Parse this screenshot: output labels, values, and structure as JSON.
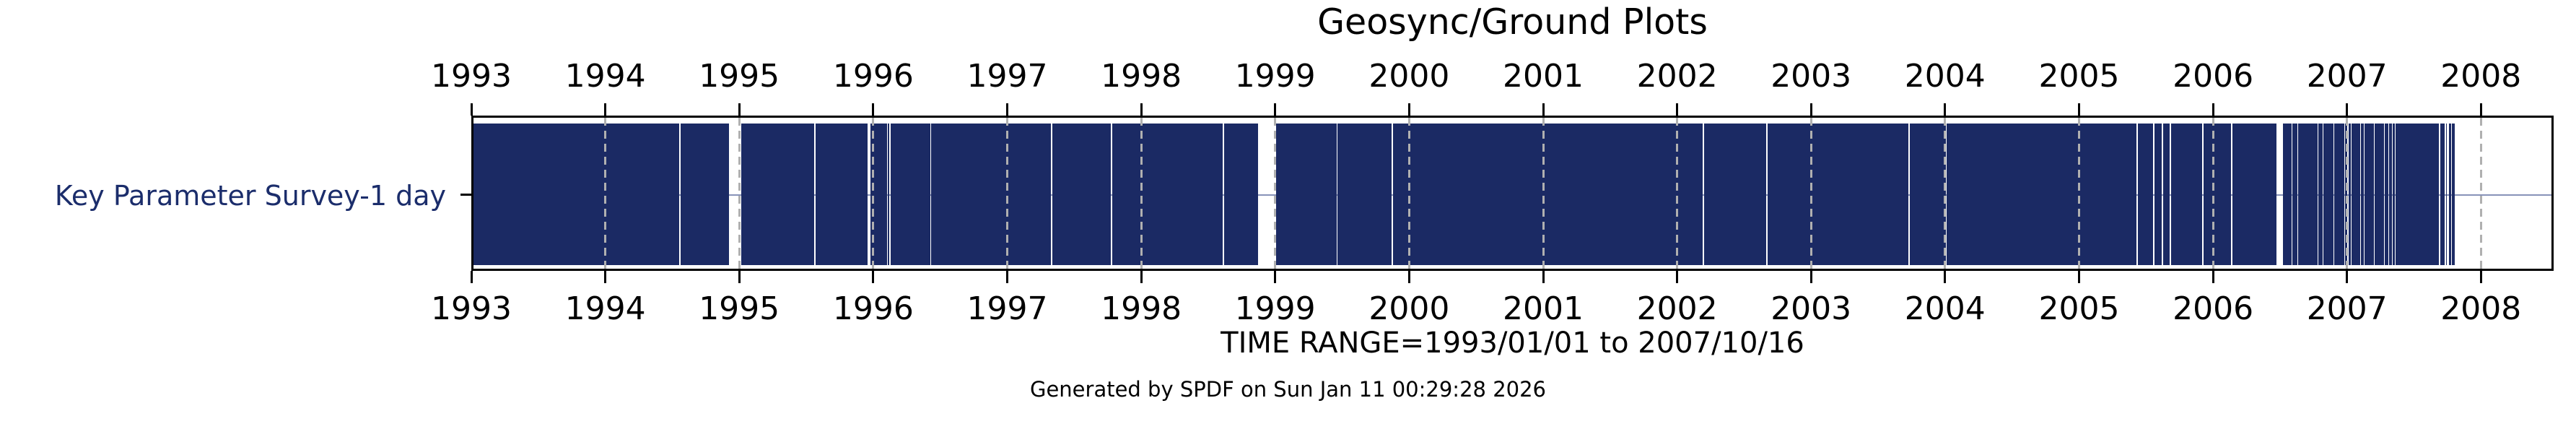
{
  "title": "Geosync/Ground Plots",
  "captions": {
    "time_range": "TIME RANGE=1993/01/01 to 2007/10/16",
    "generated": "Generated by SPDF on Sun Jan 11 00:29:28 2026"
  },
  "colors": {
    "bar": "#1b2a64",
    "row_label_text": "#1b2d6b",
    "row_center_line": "#8893b8",
    "gridline": "#b0b0b0",
    "axis": "#000000",
    "background": "#ffffff"
  },
  "chart_data": {
    "type": "bar",
    "subtype": "time-availability-timeline",
    "title": "Geosync/Ground Plots",
    "grid": "vertical-dashed-at-each-year",
    "legend": "none",
    "x_domain_years": [
      1993.0,
      2008.51
    ],
    "x_ticks": [
      1993,
      1994,
      1995,
      1996,
      1997,
      1998,
      1999,
      2000,
      2001,
      2002,
      2003,
      2004,
      2005,
      2006,
      2007,
      2008
    ],
    "x_tick_label_sides": [
      "top",
      "bottom"
    ],
    "time_range": {
      "start": "1993/01/01",
      "end": "2007/10/16"
    },
    "rows": [
      {
        "label": "Key Parameter Survey-1 day",
        "segments_years": [
          [
            1993.0,
            1994.537
          ],
          [
            1994.548,
            1994.908
          ],
          [
            1995.0,
            1995.543
          ],
          [
            1995.551,
            1995.941
          ],
          [
            1995.962,
            1996.086
          ],
          [
            1996.094,
            1996.105
          ],
          [
            1996.113,
            1996.409
          ],
          [
            1996.417,
            1997.312
          ],
          [
            1997.32,
            1997.758
          ],
          [
            1997.766,
            1998.591
          ],
          [
            1998.602,
            1998.855
          ],
          [
            1998.989,
            1999.441
          ],
          [
            1999.449,
            1999.855
          ],
          [
            1999.863,
            2002.177
          ],
          [
            2002.185,
            2002.65
          ],
          [
            2002.658,
            2003.71
          ],
          [
            2003.718,
            2003.989
          ],
          [
            2003.997,
            2005.414
          ],
          [
            2005.422,
            2005.538
          ],
          [
            2005.546,
            2005.602
          ],
          [
            2005.61,
            2005.661
          ],
          [
            2005.669,
            2005.903
          ],
          [
            2005.911,
            2006.118
          ],
          [
            2006.126,
            2006.457
          ],
          [
            2006.505,
            2006.57
          ],
          [
            2006.578,
            2006.613
          ],
          [
            2006.621,
            2006.763
          ],
          [
            2006.771,
            2006.801
          ],
          [
            2006.809,
            2006.882
          ],
          [
            2006.89,
            2006.962
          ],
          [
            2006.97,
            2006.984
          ],
          [
            2006.995,
            2007.011
          ],
          [
            2007.019,
            2007.081
          ],
          [
            2007.089,
            2007.108
          ],
          [
            2007.116,
            2007.183
          ],
          [
            2007.191,
            2007.258
          ],
          [
            2007.266,
            2007.29
          ],
          [
            2007.298,
            2007.317
          ],
          [
            2007.325,
            2007.339
          ],
          [
            2007.347,
            2007.672
          ],
          [
            2007.68,
            2007.715
          ],
          [
            2007.723,
            2007.731
          ],
          [
            2007.747,
            2007.763
          ],
          [
            2007.768,
            2007.79
          ]
        ]
      }
    ]
  }
}
